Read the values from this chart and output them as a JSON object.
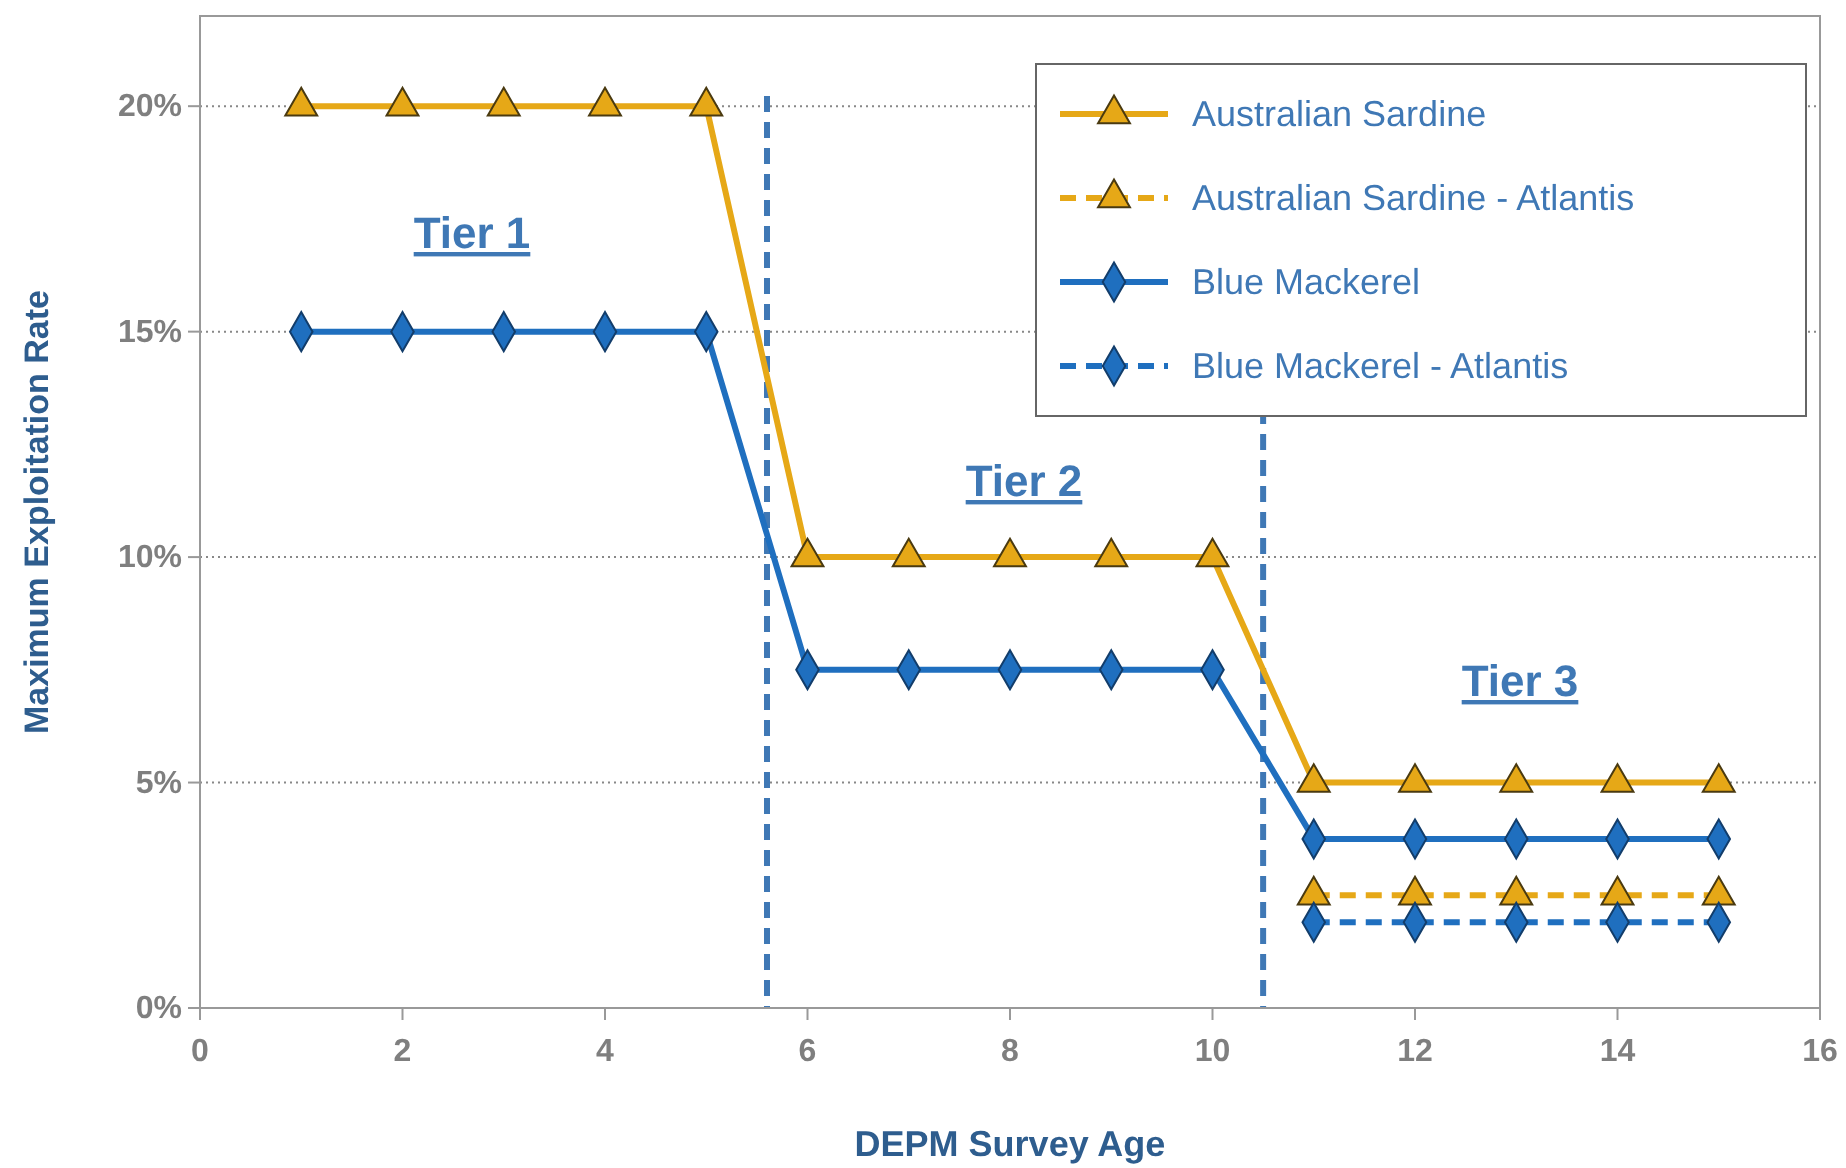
{
  "chart_data": {
    "type": "line",
    "xlabel": "DEPM Survey Age",
    "ylabel": "Maximum Exploitation Rate",
    "xlim": [
      0,
      16
    ],
    "xticks": [
      0,
      2,
      4,
      6,
      8,
      10,
      12,
      14,
      16
    ],
    "ylim": [
      0,
      22
    ],
    "yticks": [
      {
        "value": 0,
        "label": "0%"
      },
      {
        "value": 5,
        "label": "5%"
      },
      {
        "value": 10,
        "label": "10%"
      },
      {
        "value": 15,
        "label": "15%"
      },
      {
        "value": 20,
        "label": "20%"
      }
    ],
    "grid": "y",
    "legend": "top right",
    "series": [
      {
        "name": "Australian Sardine",
        "color": "#e6a817",
        "marker": "triangle",
        "line_style": "solid",
        "x": [
          1,
          2,
          3,
          4,
          5,
          6,
          7,
          8,
          9,
          10,
          11,
          12,
          13,
          14,
          15
        ],
        "values": [
          20,
          20,
          20,
          20,
          20,
          10,
          10,
          10,
          10,
          10,
          5,
          5,
          5,
          5,
          5
        ]
      },
      {
        "name": "Australian Sardine - Atlantis",
        "color": "#e6a817",
        "marker": "triangle",
        "line_style": "dashed",
        "x": [
          11,
          12,
          13,
          14,
          15
        ],
        "values": [
          2.5,
          2.5,
          2.5,
          2.5,
          2.5
        ]
      },
      {
        "name": "Blue Mackerel",
        "color": "#1f6fbf",
        "marker": "diamond",
        "line_style": "solid",
        "x": [
          1,
          2,
          3,
          4,
          5,
          6,
          7,
          8,
          9,
          10,
          11,
          12,
          13,
          14,
          15
        ],
        "values": [
          15,
          15,
          15,
          15,
          15,
          7.5,
          7.5,
          7.5,
          7.5,
          7.5,
          3.75,
          3.75,
          3.75,
          3.75,
          3.75
        ]
      },
      {
        "name": "Blue Mackerel - Atlantis",
        "color": "#1f6fbf",
        "marker": "diamond",
        "line_style": "dashed",
        "x": [
          11,
          12,
          13,
          14,
          15
        ],
        "values": [
          1.9,
          1.9,
          1.9,
          1.9,
          1.9
        ]
      }
    ],
    "ref_lines": [
      {
        "axis": "x",
        "value": 5.6,
        "color": "#3f78b5",
        "line_style": "dashed"
      },
      {
        "axis": "x",
        "value": 10.5,
        "color": "#3f78b5",
        "line_style": "dashed"
      }
    ],
    "annotations": [
      "Tier 1",
      "Tier 2",
      "Tier 3"
    ]
  }
}
